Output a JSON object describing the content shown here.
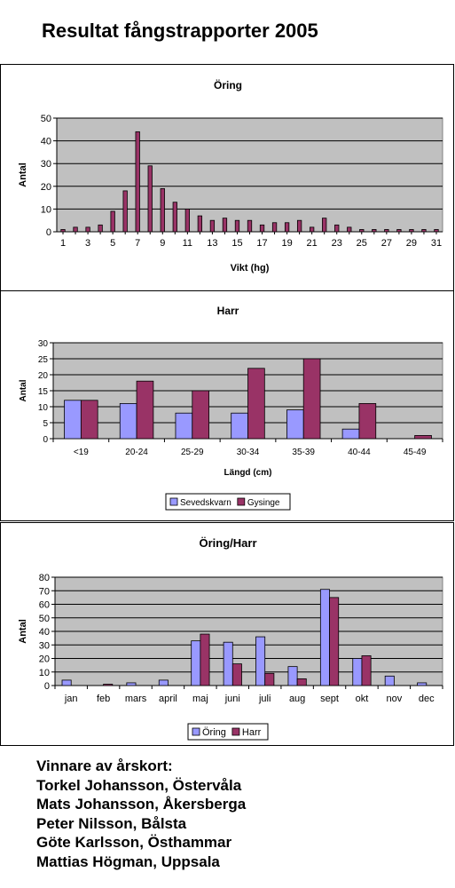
{
  "page": {
    "title": "Resultat fångstrapporter 2005",
    "winners_heading": "Vinnare av årskort:",
    "winners": [
      "Torkel Johansson, Östervåla",
      "Mats Johansson, Åkersberga",
      "Peter Nilsson, Bålsta",
      "Göte Karlsson, Östhammar",
      "Mattias Högman, Uppsala"
    ]
  },
  "colors": {
    "plot_bg": "#C0C0C0",
    "series_blue": "#9999FF",
    "series_red": "#993366"
  },
  "chart_data": [
    {
      "type": "bar",
      "title": "Öring",
      "xlabel": "Vikt (hg)",
      "ylabel": "Antal",
      "ylim": [
        0,
        50
      ],
      "yticks": [
        0,
        10,
        20,
        30,
        40,
        50
      ],
      "categories": [
        "1",
        "2",
        "3",
        "4",
        "5",
        "6",
        "7",
        "8",
        "9",
        "10",
        "11",
        "12",
        "13",
        "14",
        "15",
        "16",
        "17",
        "18",
        "19",
        "20",
        "21",
        "22",
        "23",
        "24",
        "25",
        "26",
        "27",
        "28",
        "29",
        "30",
        "31"
      ],
      "xtick_labels": [
        "1",
        "3",
        "5",
        "7",
        "9",
        "11",
        "13",
        "15",
        "17",
        "19",
        "21",
        "23",
        "25",
        "27",
        "29",
        "31"
      ],
      "series": [
        {
          "color": "#993366",
          "values": [
            1,
            2,
            2,
            3,
            9,
            18,
            44,
            29,
            19,
            13,
            10,
            7,
            5,
            6,
            5,
            5,
            3,
            4,
            4,
            5,
            2,
            6,
            3,
            2,
            1,
            1,
            1,
            1,
            1,
            1,
            1
          ]
        }
      ],
      "legend": null,
      "grid": true
    },
    {
      "type": "bar",
      "title": "Harr",
      "xlabel": "Längd (cm)",
      "ylabel": "Antal",
      "ylim": [
        0,
        30
      ],
      "yticks": [
        0,
        5,
        10,
        15,
        20,
        25,
        30
      ],
      "categories": [
        "<19",
        "20-24",
        "25-29",
        "30-34",
        "35-39",
        "40-44",
        "45-49"
      ],
      "series": [
        {
          "name": "Sevedskvarn",
          "color": "#9999FF",
          "values": [
            12,
            11,
            8,
            8,
            9,
            3,
            0
          ]
        },
        {
          "name": "Gysinge",
          "color": "#993366",
          "values": [
            12,
            18,
            15,
            22,
            25,
            11,
            1
          ]
        }
      ],
      "legend": "bottom",
      "grid": true
    },
    {
      "type": "bar",
      "title": "Öring/Harr",
      "xlabel": "",
      "ylabel": "Antal",
      "ylim": [
        0,
        80
      ],
      "yticks": [
        0,
        10,
        20,
        30,
        40,
        50,
        60,
        70,
        80
      ],
      "categories": [
        "jan",
        "feb",
        "mars",
        "april",
        "maj",
        "juni",
        "juli",
        "aug",
        "sept",
        "okt",
        "nov",
        "dec"
      ],
      "series": [
        {
          "name": "Öring",
          "color": "#9999FF",
          "values": [
            4,
            0,
            2,
            4,
            33,
            32,
            36,
            14,
            71,
            20,
            7,
            2
          ]
        },
        {
          "name": "Harr",
          "color": "#993366",
          "values": [
            0,
            1,
            0,
            0,
            38,
            16,
            9,
            5,
            65,
            22,
            0,
            0
          ]
        }
      ],
      "legend": "bottom",
      "grid": true
    }
  ]
}
